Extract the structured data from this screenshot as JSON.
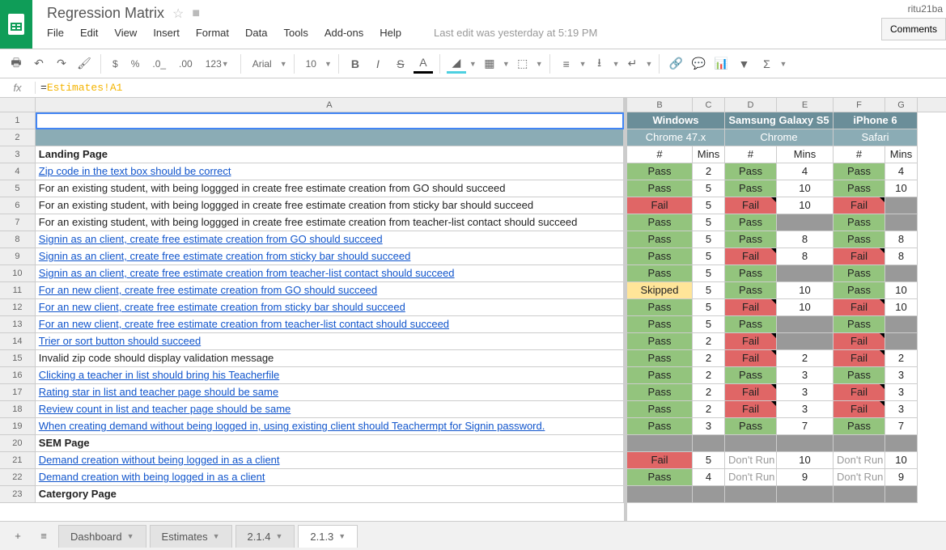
{
  "doc": {
    "title": "Regression Matrix",
    "user": "ritu21ba",
    "comments_btn": "Comments",
    "last_edit": "Last edit was yesterday at 5:19 PM"
  },
  "menus": [
    "File",
    "Edit",
    "View",
    "Insert",
    "Format",
    "Data",
    "Tools",
    "Add-ons",
    "Help"
  ],
  "toolbar": {
    "font": "Arial",
    "size": "10",
    "num_fmt": "123"
  },
  "formula": {
    "prefix": "=",
    "ref": "Estimates!A1"
  },
  "colors": {
    "pass": "#93c47d",
    "fail": "#e06666",
    "skipped": "#ffe599",
    "grey": "#999999",
    "hdr_dark": "#6b8e99",
    "hdr_light": "#8bacb5",
    "link": "#1155cc",
    "dont_run_text": "#999999"
  },
  "left_cols": {
    "A": 731
  },
  "right_cols": {
    "B": 81,
    "C": 40,
    "D": 64,
    "E": 70,
    "F": 64,
    "G": 40
  },
  "header_groups": {
    "r1": [
      {
        "span": [
          "B",
          "C"
        ],
        "text": "Windows"
      },
      {
        "span": [
          "D",
          "E"
        ],
        "text": "Samsung Galaxy S5"
      },
      {
        "span": [
          "F",
          "G"
        ],
        "text": "iPhone 6"
      }
    ],
    "r2": [
      {
        "span": [
          "B",
          "C"
        ],
        "text": "Chrome 47.x"
      },
      {
        "span": [
          "D",
          "E"
        ],
        "text": "Chrome"
      },
      {
        "span": [
          "F",
          "G"
        ],
        "text": "Safari"
      }
    ],
    "r3": {
      "B": "#",
      "C": "Mins",
      "D": "#",
      "E": "Mins",
      "F": "#",
      "G": "Mins"
    }
  },
  "rows": [
    {
      "n": 1,
      "a": "",
      "sel": true
    },
    {
      "n": 2,
      "a": ""
    },
    {
      "n": 3,
      "a": "Landing Page",
      "bold": true,
      "section": true
    },
    {
      "n": 4,
      "a": "Zip code in the text box should be correct",
      "link": true,
      "B": {
        "s": "Pass"
      },
      "C": {
        "v": "2"
      },
      "D": {
        "s": "Pass"
      },
      "E": {
        "v": "4"
      },
      "F": {
        "s": "Pass"
      },
      "G": {
        "v": "4"
      }
    },
    {
      "n": 5,
      "a": "For an existing student, with being loggged in create free estimate creation from GO should succeed",
      "B": {
        "s": "Pass"
      },
      "C": {
        "v": "5"
      },
      "D": {
        "s": "Pass"
      },
      "E": {
        "v": "10"
      },
      "F": {
        "s": "Pass"
      },
      "G": {
        "v": "10"
      }
    },
    {
      "n": 6,
      "a": "For an existing student, with being loggged in create free estimate creation from sticky bar should succeed",
      "B": {
        "s": "Fail"
      },
      "C": {
        "v": "5"
      },
      "D": {
        "s": "Fail",
        "note": true
      },
      "E": {
        "v": "10"
      },
      "F": {
        "s": "Fail",
        "note": true
      },
      "G": {
        "s": "Grey"
      }
    },
    {
      "n": 7,
      "a": "For an existing student, with being loggged in create free estimate creation from teacher-list contact should succeed",
      "B": {
        "s": "Pass"
      },
      "C": {
        "v": "5"
      },
      "D": {
        "s": "Pass"
      },
      "E": {
        "s": "Grey"
      },
      "F": {
        "s": "Pass"
      },
      "G": {
        "s": "Grey"
      }
    },
    {
      "n": 8,
      "a": "Signin as an client, create free estimate creation from GO should succeed",
      "link": true,
      "B": {
        "s": "Pass"
      },
      "C": {
        "v": "5"
      },
      "D": {
        "s": "Pass"
      },
      "E": {
        "v": "8"
      },
      "F": {
        "s": "Pass"
      },
      "G": {
        "v": "8"
      }
    },
    {
      "n": 9,
      "a": "Signin as an client, create free estimate creation from sticky bar should succeed",
      "link": true,
      "B": {
        "s": "Pass"
      },
      "C": {
        "v": "5"
      },
      "D": {
        "s": "Fail",
        "note": true
      },
      "E": {
        "v": "8"
      },
      "F": {
        "s": "Fail",
        "note": true
      },
      "G": {
        "v": "8"
      }
    },
    {
      "n": 10,
      "a": "Signin as an client, create free estimate creation from teacher-list contact should succeed",
      "link": true,
      "B": {
        "s": "Pass"
      },
      "C": {
        "v": "5"
      },
      "D": {
        "s": "Pass"
      },
      "E": {
        "s": "Grey"
      },
      "F": {
        "s": "Pass"
      },
      "G": {
        "s": "Grey"
      }
    },
    {
      "n": 11,
      "a": "For an new  client, create free estimate creation from GO should succeed",
      "link": true,
      "B": {
        "s": "Skipped"
      },
      "C": {
        "v": "5"
      },
      "D": {
        "s": "Pass"
      },
      "E": {
        "v": "10"
      },
      "F": {
        "s": "Pass"
      },
      "G": {
        "v": "10"
      }
    },
    {
      "n": 12,
      "a": "For an new  client, create free estimate creation from sticky bar should succeed",
      "link": true,
      "B": {
        "s": "Pass"
      },
      "C": {
        "v": "5"
      },
      "D": {
        "s": "Fail",
        "note": true
      },
      "E": {
        "v": "10"
      },
      "F": {
        "s": "Fail",
        "note": true
      },
      "G": {
        "v": "10"
      }
    },
    {
      "n": 13,
      "a": "For an new  client, create free estimate creation from teacher-list contact should succeed",
      "link": true,
      "B": {
        "s": "Pass"
      },
      "C": {
        "v": "5"
      },
      "D": {
        "s": "Pass"
      },
      "E": {
        "s": "Grey"
      },
      "F": {
        "s": "Pass"
      },
      "G": {
        "s": "Grey"
      }
    },
    {
      "n": 14,
      "a": "Trier or sort button should succeed",
      "link": true,
      "B": {
        "s": "Pass"
      },
      "C": {
        "v": "2"
      },
      "D": {
        "s": "Fail",
        "note": true
      },
      "E": {
        "s": "Grey"
      },
      "F": {
        "s": "Fail",
        "note": true
      },
      "G": {
        "s": "Grey"
      }
    },
    {
      "n": 15,
      "a": "Invalid zip code should display validation message",
      "B": {
        "s": "Pass"
      },
      "C": {
        "v": "2"
      },
      "D": {
        "s": "Fail",
        "note": true
      },
      "E": {
        "v": "2"
      },
      "F": {
        "s": "Fail",
        "note": true
      },
      "G": {
        "v": "2"
      }
    },
    {
      "n": 16,
      "a": "Clicking a teacher in list should bring his Teacherfile",
      "link": true,
      "B": {
        "s": "Pass"
      },
      "C": {
        "v": "2"
      },
      "D": {
        "s": "Pass"
      },
      "E": {
        "v": "3"
      },
      "F": {
        "s": "Pass"
      },
      "G": {
        "v": "3"
      }
    },
    {
      "n": 17,
      "a": "Rating star in list and teacher page should be same",
      "link": true,
      "B": {
        "s": "Pass"
      },
      "C": {
        "v": "2"
      },
      "D": {
        "s": "Fail",
        "note": true
      },
      "E": {
        "v": "3"
      },
      "F": {
        "s": "Fail",
        "note": true
      },
      "G": {
        "v": "3"
      }
    },
    {
      "n": 18,
      "a": "Review count in list and teacher page should be same",
      "link": true,
      "B": {
        "s": "Pass"
      },
      "C": {
        "v": "2"
      },
      "D": {
        "s": "Fail",
        "note": true
      },
      "E": {
        "v": "3"
      },
      "F": {
        "s": "Fail",
        "note": true
      },
      "G": {
        "v": "3"
      }
    },
    {
      "n": 19,
      "a": "When creating demand without being logged in, using existing client should Teachermpt for Signin password.",
      "link": true,
      "B": {
        "s": "Pass"
      },
      "C": {
        "v": "3"
      },
      "D": {
        "s": "Pass"
      },
      "E": {
        "v": "7"
      },
      "F": {
        "s": "Pass"
      },
      "G": {
        "v": "7"
      }
    },
    {
      "n": 20,
      "a": "SEM Page",
      "bold": true,
      "section": true
    },
    {
      "n": 21,
      "a": "Demand creation without being logged in as a client",
      "link": true,
      "B": {
        "s": "Fail"
      },
      "C": {
        "v": "5"
      },
      "D": {
        "s": "DontRun",
        "v": "Don't Run"
      },
      "E": {
        "v": "10"
      },
      "F": {
        "s": "DontRun",
        "v": "Don't Run"
      },
      "G": {
        "v": "10"
      }
    },
    {
      "n": 22,
      "a": "Demand creation with being logged in as a client",
      "link": true,
      "B": {
        "s": "Pass"
      },
      "C": {
        "v": "4"
      },
      "D": {
        "s": "DontRun",
        "v": "Don't Run"
      },
      "E": {
        "v": "9"
      },
      "F": {
        "s": "DontRun",
        "v": "Don't Run"
      },
      "G": {
        "v": "9"
      }
    },
    {
      "n": 23,
      "a": "Catergory Page",
      "bold": true,
      "section": true
    }
  ],
  "sheets": [
    {
      "name": "Dashboard",
      "active": false
    },
    {
      "name": "Estimates",
      "active": false
    },
    {
      "name": "2.1.4",
      "active": false
    },
    {
      "name": "2.1.3",
      "active": true
    }
  ]
}
